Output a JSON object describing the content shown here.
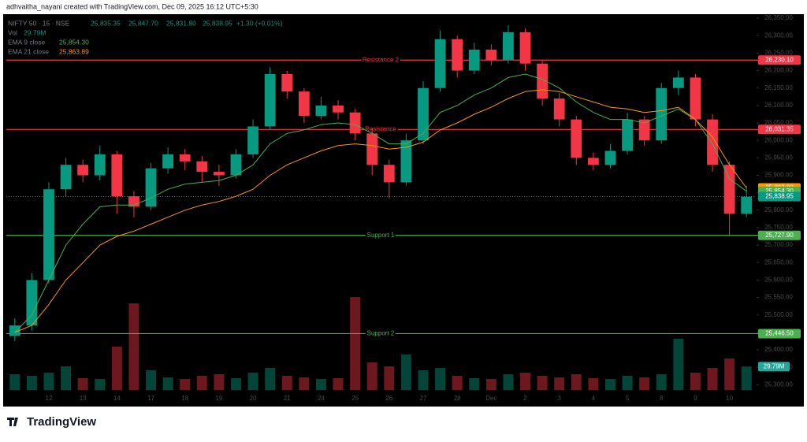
{
  "chart_data": {
    "type": "candlestick",
    "title": "adhvaitha_nayani created with TradingView.com, Dec 09, 2025 16:12 UTC+5:30",
    "brand": "TradingView",
    "legend": {
      "symbol": "NIFTY 50 · 15 · NSE",
      "open": "25,835.35",
      "high": "25,847.70",
      "low": "25,831.80",
      "close": "25,838.95",
      "change": "+1.30 (+0.01%)",
      "volume_label": "Vol",
      "volume_value": "29.79M",
      "ema9_label": "EMA 9 close",
      "ema9_value": "25,854.30",
      "ema21_label": "EMA 21 close",
      "ema21_value": "25,863.89"
    },
    "categories": [
      null,
      null,
      "12",
      null,
      "13",
      null,
      "14",
      null,
      "17",
      null,
      "18",
      null,
      "19",
      null,
      "20",
      null,
      "21",
      null,
      "24",
      null,
      "25",
      null,
      "26",
      null,
      "27",
      null,
      "28",
      null,
      "Dec",
      null,
      "2",
      null,
      "3",
      null,
      "4",
      null,
      "5",
      null,
      "8",
      null,
      "9",
      null,
      "10",
      null
    ],
    "candles": {
      "up_color": "#089981",
      "down_color": "#f23645",
      "open": [
        25440,
        25470,
        25600,
        25860,
        25930,
        25900,
        25960,
        25840,
        25810,
        25920,
        25960,
        25940,
        25910,
        25900,
        25960,
        26040,
        26190,
        26140,
        26070,
        26100,
        26080,
        26020,
        25930,
        25880,
        26000,
        26150,
        26290,
        26200,
        26260,
        26230,
        26310,
        26220,
        26120,
        26060,
        25950,
        25930,
        25970,
        26060,
        26000,
        26150,
        26180,
        26060,
        25930,
        25790
      ],
      "high": [
        25490,
        25620,
        25880,
        25950,
        25945,
        25985,
        25970,
        25855,
        25935,
        25980,
        25975,
        25955,
        25930,
        25975,
        26060,
        26210,
        26200,
        26150,
        26125,
        26115,
        26090,
        26035,
        25945,
        26020,
        26170,
        26315,
        26300,
        26280,
        26275,
        26330,
        26320,
        26230,
        26135,
        26070,
        25965,
        25990,
        26080,
        26070,
        26165,
        26200,
        26190,
        26075,
        25940,
        25870
      ],
      "low": [
        25425,
        25455,
        25590,
        25840,
        25880,
        25885,
        25790,
        25780,
        25800,
        25905,
        25915,
        25880,
        25870,
        25890,
        25950,
        26030,
        26120,
        26050,
        26060,
        26060,
        26000,
        25900,
        25835,
        25870,
        25990,
        26140,
        26180,
        26190,
        26215,
        26220,
        26200,
        26100,
        26040,
        25930,
        25915,
        25920,
        25960,
        25985,
        25990,
        26130,
        26040,
        25910,
        25725,
        25780
      ],
      "close": [
        25470,
        25600,
        25860,
        25930,
        25900,
        25960,
        25840,
        25810,
        25920,
        25960,
        25940,
        25910,
        25900,
        25960,
        26040,
        26190,
        26140,
        26070,
        26100,
        26080,
        26020,
        25930,
        25880,
        26000,
        26150,
        26290,
        26200,
        26260,
        26230,
        26310,
        26220,
        26120,
        26060,
        25950,
        25930,
        25970,
        26060,
        26000,
        26150,
        26180,
        26060,
        25930,
        25790,
        25838.95
      ],
      "last_label": "25,838.95",
      "last_color": "#089981"
    },
    "ema": [
      {
        "name": "EMA 9",
        "color": "#4caf50",
        "value_label": "25,854.30",
        "values": [
          25450,
          25500,
          25600,
          25700,
          25760,
          25810,
          25815,
          25815,
          25835,
          25860,
          25875,
          25880,
          25885,
          25900,
          25930,
          25990,
          26020,
          26030,
          26045,
          26050,
          26045,
          26020,
          25990,
          25990,
          26020,
          26080,
          26100,
          26130,
          26150,
          26180,
          26190,
          26175,
          26150,
          26110,
          26080,
          26060,
          26060,
          26050,
          26070,
          26090,
          26060,
          25990,
          25890,
          25854.3
        ]
      },
      {
        "name": "EMA 21",
        "color": "#ff9800",
        "value_label": "25,863.89",
        "values": [
          25450,
          25470,
          25530,
          25600,
          25650,
          25700,
          25725,
          25740,
          25760,
          25780,
          25800,
          25815,
          25825,
          25840,
          25860,
          25900,
          25930,
          25950,
          25970,
          25985,
          25990,
          25985,
          25975,
          25980,
          25995,
          26030,
          26050,
          26075,
          26095,
          26120,
          26140,
          26145,
          26140,
          26125,
          26110,
          26095,
          26090,
          26080,
          26085,
          26095,
          26060,
          26010,
          25930,
          25863.89
        ]
      }
    ],
    "volume": {
      "values": [
        20,
        18,
        22,
        30,
        15,
        14,
        55,
        110,
        25,
        16,
        14,
        18,
        20,
        15,
        22,
        28,
        18,
        16,
        14,
        15,
        118,
        35,
        30,
        45,
        25,
        28,
        18,
        15,
        14,
        20,
        22,
        18,
        16,
        20,
        15,
        14,
        18,
        16,
        20,
        65,
        22,
        28,
        40,
        29.79
      ],
      "vlim": [
        0,
        125
      ],
      "color": "#26a69a"
    },
    "levels": [
      {
        "label": "Resistance 2",
        "value": 26230.1,
        "value_label": "26,230.10",
        "color": "#f23645"
      },
      {
        "label": "Resistance",
        "value": 26031.35,
        "value_label": "26,031.35",
        "color": "#f23645"
      },
      {
        "label": "Support 1",
        "value": 25727.9,
        "value_label": "25,727.90",
        "color": "#4caf50"
      },
      {
        "label": "Support 2",
        "value": 25446.5,
        "value_label": "25,446.50",
        "color": "#4caf50"
      }
    ],
    "ylim": [
      25285,
      26357
    ],
    "yticks": [
      {
        "value": 25300,
        "label": "25,300.00"
      },
      {
        "value": 25350,
        "label": "25,350.00"
      },
      {
        "value": 25400,
        "label": "25,400.00"
      },
      {
        "value": 25450,
        "label": "25,450.00"
      },
      {
        "value": 25500,
        "label": "25,500.00"
      },
      {
        "value": 25550,
        "label": "25,550.00"
      },
      {
        "value": 25600,
        "label": "25,600.00"
      },
      {
        "value": 25650,
        "label": "25,650.00"
      },
      {
        "value": 25700,
        "label": "25,700.00"
      },
      {
        "value": 25750,
        "label": "25,750.00"
      },
      {
        "value": 25800,
        "label": "25,800.00"
      },
      {
        "value": 25850,
        "label": "25,850.00"
      },
      {
        "value": 25900,
        "label": "25,900.00"
      },
      {
        "value": 25950,
        "label": "25,950.00"
      },
      {
        "value": 26000,
        "label": "26,000.00"
      },
      {
        "value": 26050,
        "label": "26,050.00"
      },
      {
        "value": 26100,
        "label": "26,100.00"
      },
      {
        "value": 26150,
        "label": "26,150.00"
      },
      {
        "value": 26200,
        "label": "26,200.00"
      },
      {
        "value": 26250,
        "label": "26,250.00"
      },
      {
        "value": 26300,
        "label": "26,300.00"
      },
      {
        "value": 26350,
        "label": "26,350.00"
      }
    ],
    "grid": false
  }
}
